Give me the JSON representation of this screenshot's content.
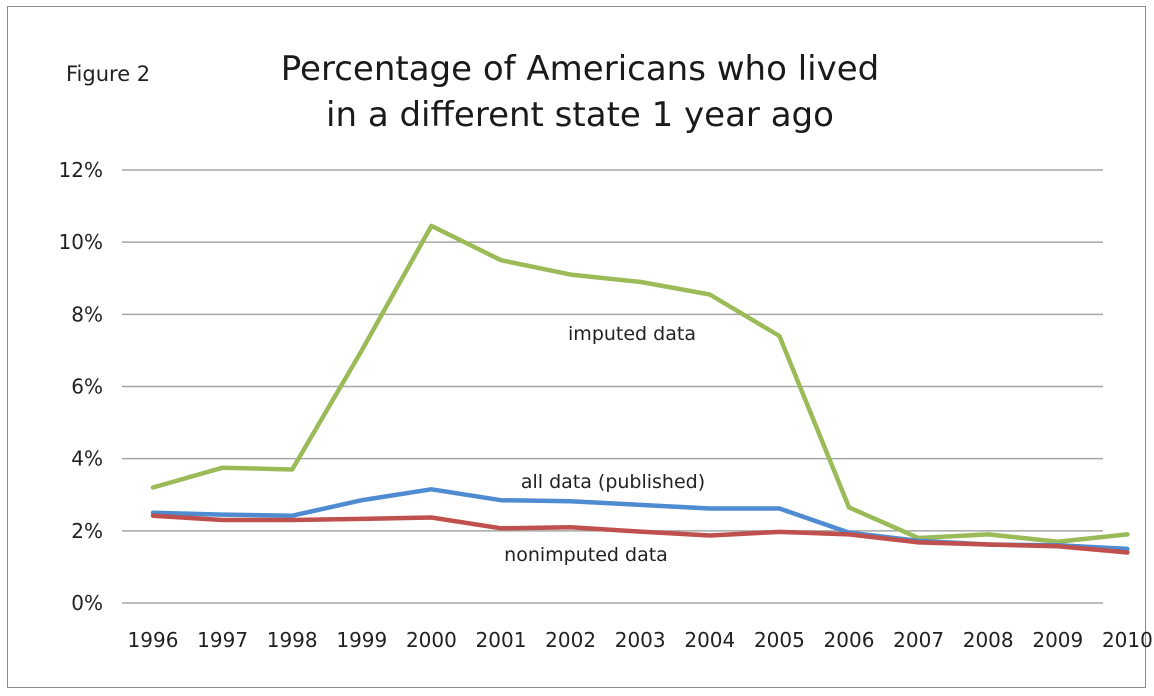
{
  "figure_label": "Figure 2",
  "chart_data": {
    "type": "line",
    "title_lines": [
      "Percentage of Americans who lived",
      "in a different state 1 year ago"
    ],
    "categories": [
      "1996",
      "1997",
      "1998",
      "1999",
      "2000",
      "2001",
      "2002",
      "2003",
      "2004",
      "2005",
      "2006",
      "2007",
      "2008",
      "2009",
      "2010"
    ],
    "y_ticks": [
      "0%",
      "2%",
      "4%",
      "6%",
      "8%",
      "10%",
      "12%"
    ],
    "ylim": [
      0,
      12
    ],
    "grid": true,
    "series": [
      {
        "name": "imputed data",
        "color": "#9bbb59",
        "values": [
          3.2,
          3.75,
          3.7,
          7.0,
          10.45,
          9.5,
          9.1,
          8.9,
          8.55,
          7.4,
          2.65,
          1.8,
          1.9,
          1.7,
          1.9
        ]
      },
      {
        "name": "all data (published)",
        "color": "#4f8bd0",
        "values": [
          2.5,
          2.45,
          2.42,
          2.85,
          3.15,
          2.85,
          2.82,
          2.72,
          2.62,
          2.62,
          1.95,
          1.72,
          1.62,
          1.6,
          1.5
        ]
      },
      {
        "name": "nonimputed data",
        "color": "#c0504d",
        "values": [
          2.42,
          2.3,
          2.3,
          2.33,
          2.37,
          2.07,
          2.1,
          1.98,
          1.87,
          1.97,
          1.9,
          1.68,
          1.62,
          1.57,
          1.4
        ]
      }
    ]
  }
}
